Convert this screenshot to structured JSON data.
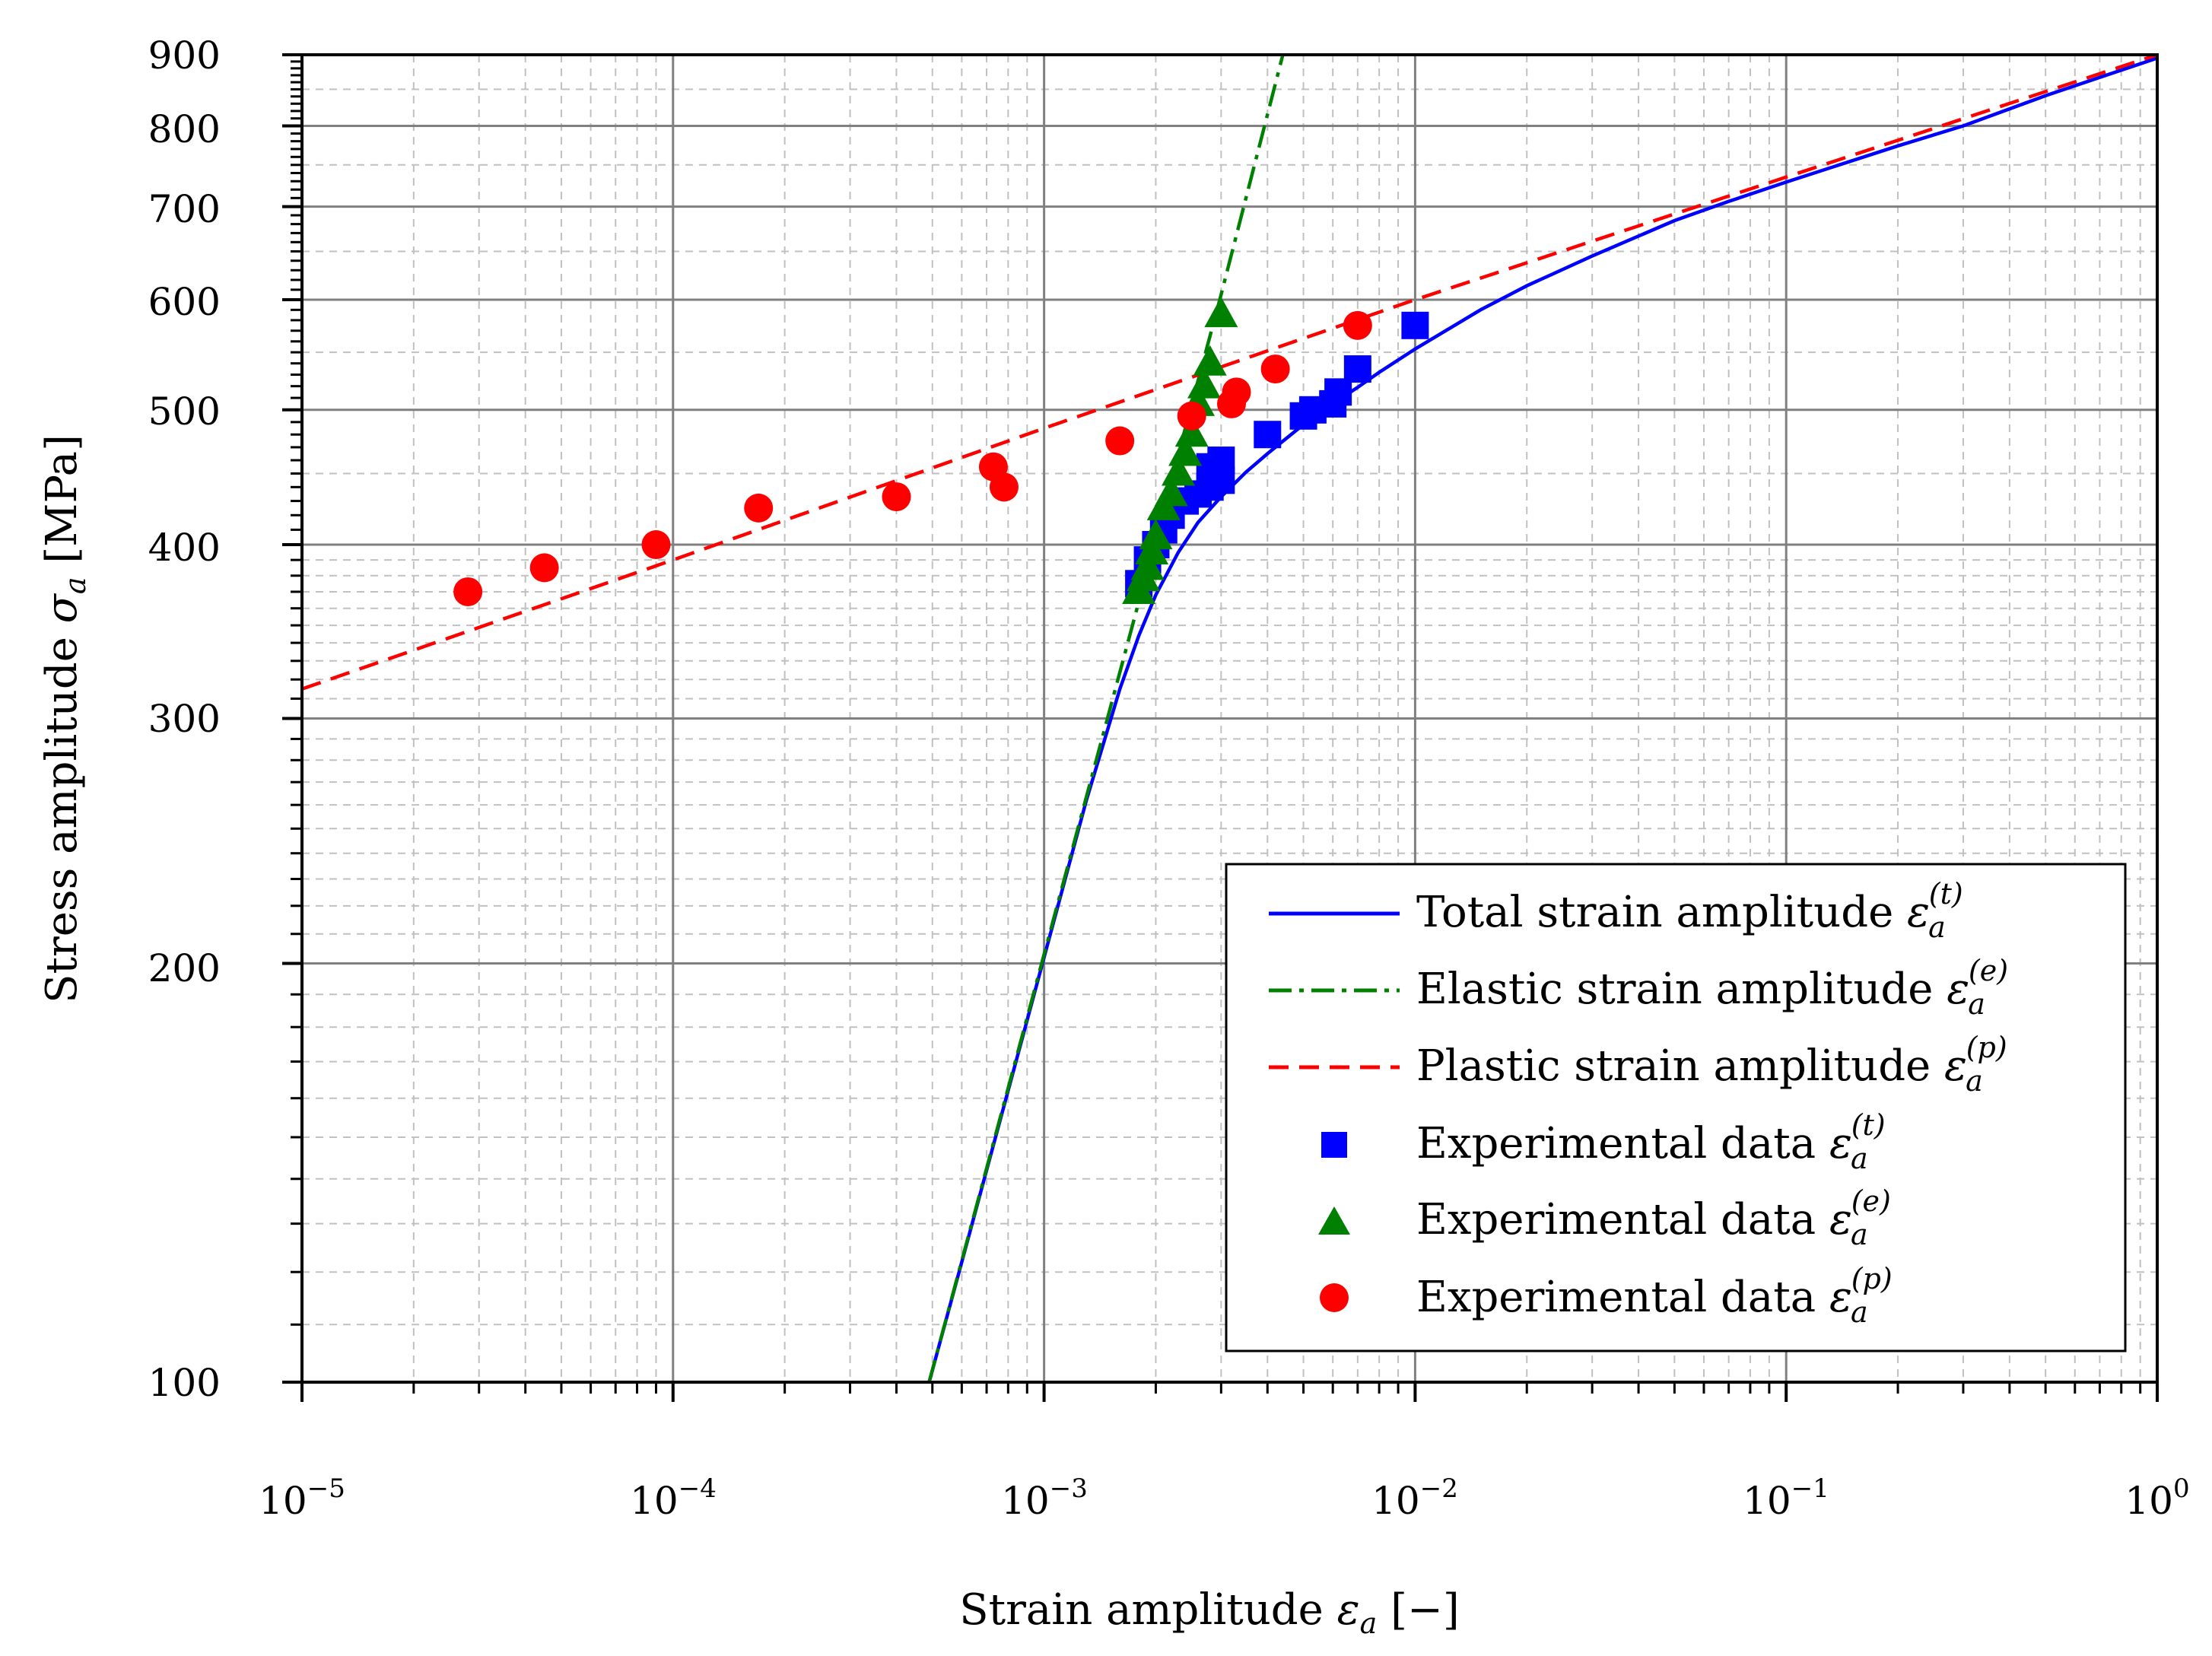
{
  "chart_data": {
    "type": "scatter",
    "xscale": "log",
    "yscale": "log",
    "xlim": [
      1e-05,
      1
    ],
    "ylim": [
      100,
      900
    ],
    "xlabel": "Strain amplitude ε_a [−]",
    "ylabel": "Stress amplitude σ_a [MPa]",
    "grid": true,
    "legend_position": "lower-right",
    "x_tick_labels": [
      "10^-5",
      "10^-4",
      "10^-3",
      "10^-2",
      "10^-1",
      "10^0"
    ],
    "y_tick_labels": [
      "100",
      "200",
      "300",
      "400",
      "500",
      "600",
      "700",
      "800",
      "900"
    ],
    "labels": {
      "xlabel_main": "Strain amplitude ",
      "xlabel_sym": "ε",
      "xlabel_sub": "a",
      "xlabel_unit": " [−]",
      "ylabel_main": "Stress amplitude ",
      "ylabel_sym": "σ",
      "ylabel_sub": "a",
      "ylabel_unit": " [MPa]",
      "xtick_base": "10",
      "xtick_exps": [
        "−5",
        "−4",
        "−3",
        "−2",
        "−1",
        "0"
      ],
      "eps": "ε",
      "a": "a",
      "sup_t": "(t)",
      "sup_e": "(e)",
      "sup_p": "(p)"
    },
    "colors": {
      "total": "#0000ff",
      "elastic": "#008000",
      "plastic": "#ff0000"
    },
    "series": [
      {
        "name": "Total strain amplitude",
        "kind": "line",
        "style": "solid",
        "color": "#0000ff",
        "superscript": "(t)",
        "x": [
          0.00049,
          0.0006,
          0.0008,
          0.001,
          0.0013,
          0.0016,
          0.0018,
          0.002,
          0.0023,
          0.0026,
          0.003,
          0.0035,
          0.004,
          0.005,
          0.006,
          0.007,
          0.008,
          0.01,
          0.015,
          0.02,
          0.03,
          0.05,
          0.07,
          0.1,
          0.2,
          0.3,
          0.5,
          0.7,
          1.0
        ],
        "y": [
          100,
          122,
          162,
          202,
          262,
          315,
          344,
          368,
          395,
          415,
          433,
          451,
          465,
          488,
          505,
          519,
          532,
          553,
          590,
          614,
          645,
          684,
          706,
          729,
          774,
          800,
          841,
          867,
          895
        ]
      },
      {
        "name": "Elastic strain amplitude",
        "kind": "line",
        "style": "dashdot",
        "color": "#008000",
        "superscript": "(e)",
        "x": [
          0.00049,
          0.001,
          0.002,
          0.003,
          0.0044
        ],
        "y": [
          100,
          203,
          404,
          605,
          900
        ]
      },
      {
        "name": "Plastic strain amplitude",
        "kind": "line",
        "style": "dashed",
        "color": "#ff0000",
        "superscript": "(p)",
        "x": [
          1e-05,
          0.0001,
          0.001,
          0.01,
          0.1,
          1.0
        ],
        "y": [
          315,
          390,
          485,
          600,
          735,
          900
        ]
      },
      {
        "name": "Experimental data",
        "kind": "points",
        "marker": "square",
        "color": "#0000ff",
        "superscript": "(t)",
        "x": [
          0.0018,
          0.0019,
          0.002,
          0.0021,
          0.0022,
          0.0024,
          0.0026,
          0.0028,
          0.003,
          0.0028,
          0.003,
          0.004,
          0.005,
          0.0053,
          0.006,
          0.0062,
          0.007,
          0.01
        ],
        "y": [
          375,
          390,
          400,
          410,
          420,
          430,
          435,
          440,
          445,
          455,
          460,
          480,
          495,
          500,
          505,
          515,
          535,
          575
        ]
      },
      {
        "name": "Experimental data",
        "kind": "points",
        "marker": "triangle",
        "color": "#008000",
        "superscript": "(e)",
        "x": [
          0.0018,
          0.00185,
          0.0019,
          0.00195,
          0.002,
          0.0021,
          0.0022,
          0.0023,
          0.0024,
          0.0025,
          0.0026,
          0.0027,
          0.0028,
          0.003
        ],
        "y": [
          370,
          378,
          385,
          395,
          405,
          425,
          435,
          450,
          465,
          480,
          505,
          520,
          540,
          585
        ]
      },
      {
        "name": "Experimental data",
        "kind": "points",
        "marker": "circle",
        "color": "#ff0000",
        "superscript": "(p)",
        "x": [
          2.8e-05,
          4.5e-05,
          9e-05,
          0.00017,
          0.0004,
          0.00073,
          0.00078,
          0.0016,
          0.0025,
          0.0032,
          0.0033,
          0.0042,
          0.007
        ],
        "y": [
          370,
          385,
          400,
          425,
          433,
          455,
          440,
          475,
          495,
          505,
          515,
          535,
          575
        ]
      }
    ]
  }
}
